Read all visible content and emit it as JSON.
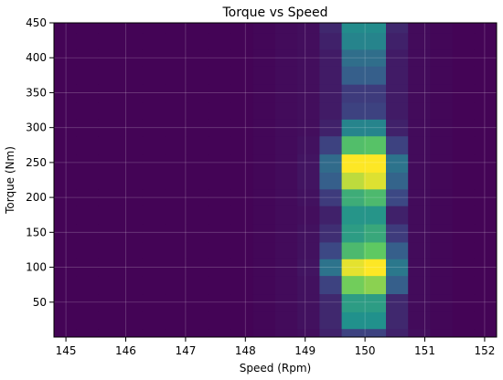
{
  "chart_data": {
    "type": "heatmap",
    "title": "Torque vs Speed",
    "xlabel": "Speed (Rpm)",
    "ylabel": "Torque (Nm)",
    "xlim": [
      144.8,
      152.2
    ],
    "ylim": [
      0,
      450
    ],
    "xticks": [
      145,
      146,
      147,
      148,
      149,
      150,
      151,
      152
    ],
    "yticks": [
      50,
      100,
      150,
      200,
      250,
      300,
      350,
      400,
      450
    ],
    "grid": true,
    "colormap": [
      "#440154",
      "#3b528b",
      "#21918c",
      "#5ec962",
      "#fde725"
    ],
    "x_edges": [
      144.8,
      145.17,
      145.54,
      145.91,
      146.28,
      146.65,
      147.02,
      147.39,
      147.76,
      148.13,
      148.5,
      148.87,
      149.24,
      149.61,
      149.98,
      150.35,
      150.72,
      151.09,
      151.46,
      151.83,
      152.2
    ],
    "y_edges": [
      0,
      12,
      36,
      62,
      88,
      112,
      136,
      162,
      188,
      212,
      236,
      262,
      288,
      312,
      336,
      362,
      388,
      412,
      436,
      450
    ],
    "z": [
      [
        0.01,
        0.01,
        0.01,
        0.01,
        0.01,
        0.01,
        0.01,
        0.01,
        0.01,
        0.02,
        0.03,
        0.04,
        0.1,
        0.2,
        0.2,
        0.1,
        0.04,
        0.02,
        0.01,
        0.01
      ],
      [
        0.01,
        0.01,
        0.01,
        0.01,
        0.01,
        0.01,
        0.01,
        0.01,
        0.01,
        0.02,
        0.03,
        0.05,
        0.12,
        0.5,
        0.5,
        0.12,
        0.03,
        0.02,
        0.01,
        0.01
      ],
      [
        0.01,
        0.01,
        0.01,
        0.01,
        0.01,
        0.01,
        0.01,
        0.01,
        0.01,
        0.02,
        0.03,
        0.05,
        0.12,
        0.55,
        0.55,
        0.12,
        0.03,
        0.02,
        0.01,
        0.01
      ],
      [
        0.01,
        0.01,
        0.01,
        0.01,
        0.01,
        0.01,
        0.01,
        0.01,
        0.01,
        0.02,
        0.03,
        0.05,
        0.2,
        0.78,
        0.82,
        0.3,
        0.03,
        0.02,
        0.01,
        0.01
      ],
      [
        0.01,
        0.01,
        0.01,
        0.01,
        0.01,
        0.01,
        0.01,
        0.01,
        0.01,
        0.02,
        0.03,
        0.06,
        0.38,
        0.96,
        1.0,
        0.4,
        0.03,
        0.02,
        0.01,
        0.01
      ],
      [
        0.01,
        0.01,
        0.01,
        0.01,
        0.01,
        0.01,
        0.01,
        0.01,
        0.01,
        0.02,
        0.03,
        0.05,
        0.22,
        0.68,
        0.75,
        0.3,
        0.03,
        0.02,
        0.01,
        0.01
      ],
      [
        0.01,
        0.01,
        0.01,
        0.01,
        0.01,
        0.01,
        0.01,
        0.01,
        0.01,
        0.02,
        0.03,
        0.05,
        0.14,
        0.55,
        0.6,
        0.18,
        0.03,
        0.02,
        0.01,
        0.01
      ],
      [
        0.01,
        0.01,
        0.01,
        0.01,
        0.01,
        0.01,
        0.01,
        0.01,
        0.01,
        0.02,
        0.03,
        0.04,
        0.1,
        0.52,
        0.52,
        0.1,
        0.03,
        0.02,
        0.01,
        0.01
      ],
      [
        0.01,
        0.01,
        0.01,
        0.01,
        0.01,
        0.01,
        0.01,
        0.01,
        0.01,
        0.02,
        0.03,
        0.05,
        0.18,
        0.62,
        0.68,
        0.22,
        0.03,
        0.02,
        0.01,
        0.01
      ],
      [
        0.01,
        0.01,
        0.01,
        0.01,
        0.01,
        0.01,
        0.01,
        0.01,
        0.01,
        0.02,
        0.03,
        0.06,
        0.3,
        0.9,
        0.95,
        0.32,
        0.03,
        0.02,
        0.01,
        0.01
      ],
      [
        0.01,
        0.01,
        0.01,
        0.01,
        0.01,
        0.01,
        0.01,
        0.01,
        0.01,
        0.02,
        0.03,
        0.06,
        0.35,
        1.0,
        1.0,
        0.38,
        0.03,
        0.02,
        0.01,
        0.01
      ],
      [
        0.01,
        0.01,
        0.01,
        0.01,
        0.01,
        0.01,
        0.01,
        0.01,
        0.01,
        0.02,
        0.03,
        0.05,
        0.2,
        0.7,
        0.72,
        0.2,
        0.03,
        0.02,
        0.01,
        0.01
      ],
      [
        0.01,
        0.01,
        0.01,
        0.01,
        0.01,
        0.01,
        0.01,
        0.01,
        0.01,
        0.02,
        0.03,
        0.04,
        0.1,
        0.45,
        0.45,
        0.1,
        0.03,
        0.02,
        0.01,
        0.01
      ],
      [
        0.01,
        0.01,
        0.01,
        0.01,
        0.01,
        0.01,
        0.01,
        0.01,
        0.01,
        0.02,
        0.03,
        0.04,
        0.08,
        0.2,
        0.2,
        0.08,
        0.03,
        0.02,
        0.01,
        0.01
      ],
      [
        0.01,
        0.01,
        0.01,
        0.01,
        0.01,
        0.01,
        0.01,
        0.01,
        0.01,
        0.02,
        0.03,
        0.04,
        0.08,
        0.18,
        0.18,
        0.08,
        0.03,
        0.02,
        0.01,
        0.01
      ],
      [
        0.01,
        0.01,
        0.01,
        0.01,
        0.01,
        0.01,
        0.01,
        0.01,
        0.01,
        0.02,
        0.03,
        0.04,
        0.08,
        0.3,
        0.3,
        0.08,
        0.03,
        0.02,
        0.01,
        0.01
      ],
      [
        0.01,
        0.01,
        0.01,
        0.01,
        0.01,
        0.01,
        0.01,
        0.01,
        0.01,
        0.02,
        0.03,
        0.04,
        0.08,
        0.36,
        0.36,
        0.08,
        0.03,
        0.02,
        0.01,
        0.01
      ],
      [
        0.01,
        0.01,
        0.01,
        0.01,
        0.01,
        0.01,
        0.01,
        0.01,
        0.01,
        0.02,
        0.03,
        0.04,
        0.1,
        0.45,
        0.45,
        0.1,
        0.03,
        0.02,
        0.01,
        0.01
      ],
      [
        0.01,
        0.01,
        0.01,
        0.01,
        0.01,
        0.01,
        0.01,
        0.01,
        0.01,
        0.02,
        0.03,
        0.04,
        0.12,
        0.48,
        0.48,
        0.12,
        0.03,
        0.02,
        0.01,
        0.01
      ]
    ]
  }
}
